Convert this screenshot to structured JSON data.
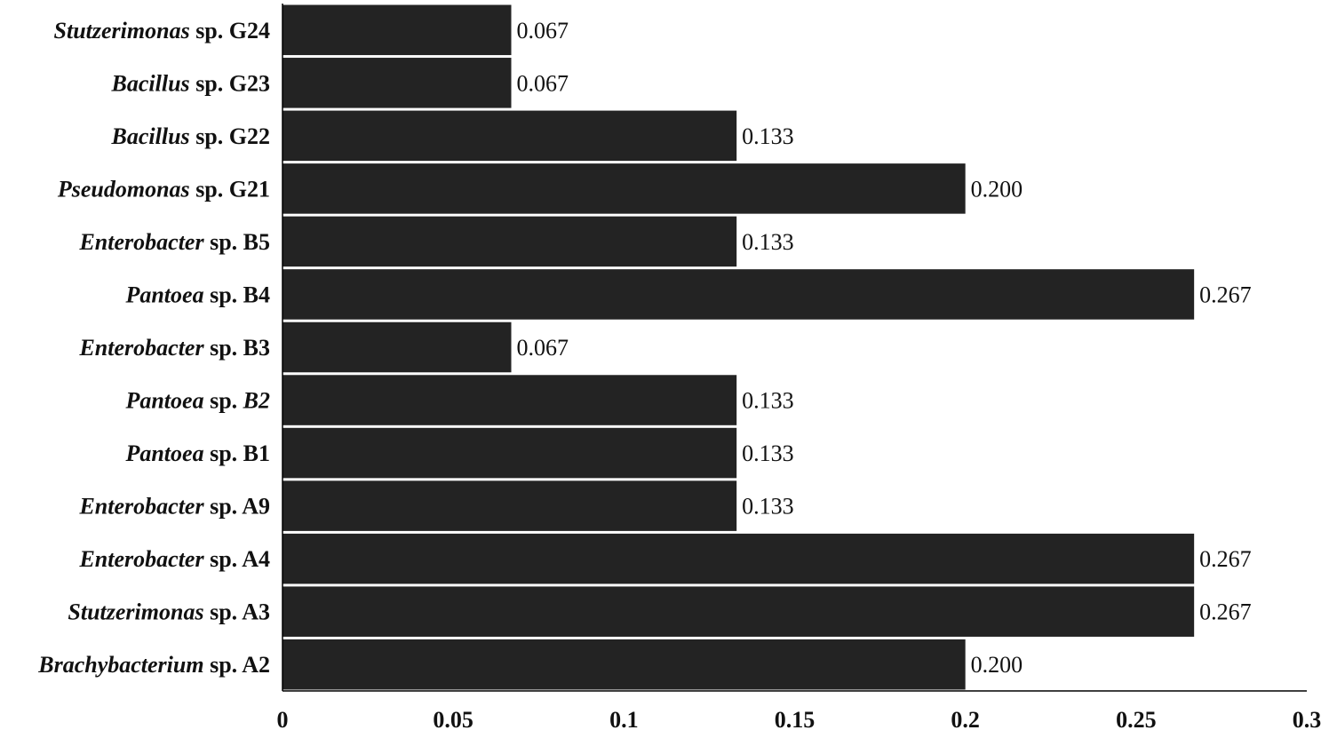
{
  "chart_data": {
    "type": "bar",
    "orientation": "horizontal",
    "categories": [
      {
        "genus": "Stutzerimonas",
        "rest": "sp. G24"
      },
      {
        "genus": "Bacillus",
        "rest": "sp. G23"
      },
      {
        "genus": "Bacillus",
        "rest": "sp. G22"
      },
      {
        "genus": "Pseudomonas",
        "rest": "sp. G21"
      },
      {
        "genus": "Enterobacter",
        "rest": "sp. B5"
      },
      {
        "genus": "Pantoea",
        "rest": "sp. B4"
      },
      {
        "genus": "Enterobacter",
        "rest": "sp. B3"
      },
      {
        "genus": "Pantoea",
        "rest": "sp.",
        "rest_italic": "B2"
      },
      {
        "genus": "Pantoea",
        "rest": "sp. B1"
      },
      {
        "genus": "Enterobacter",
        "rest": "sp. A9"
      },
      {
        "genus": "Enterobacter",
        "rest": "sp. A4"
      },
      {
        "genus": "Stutzerimonas",
        "rest": "sp. A3"
      },
      {
        "genus": "Brachybacterium",
        "rest": "sp. A2"
      }
    ],
    "values": [
      0.067,
      0.067,
      0.133,
      0.2,
      0.133,
      0.267,
      0.067,
      0.133,
      0.133,
      0.133,
      0.267,
      0.267,
      0.2
    ],
    "value_labels": [
      "0.067",
      "0.067",
      "0.133",
      "0.200",
      "0.133",
      "0.267",
      "0.067",
      "0.133",
      "0.133",
      "0.133",
      "0.267",
      "0.267",
      "0.200"
    ],
    "xlim": [
      0,
      0.3
    ],
    "xticks": [
      0,
      0.05,
      0.1,
      0.15,
      0.2,
      0.25,
      0.3
    ],
    "xtick_labels": [
      "0",
      "0.05",
      "0.1",
      "0.15",
      "0.2",
      "0.25",
      "0.3"
    ],
    "title": "",
    "xlabel": "",
    "ylabel": "",
    "grid": false,
    "legend": "none",
    "bar_color": "#232323"
  }
}
